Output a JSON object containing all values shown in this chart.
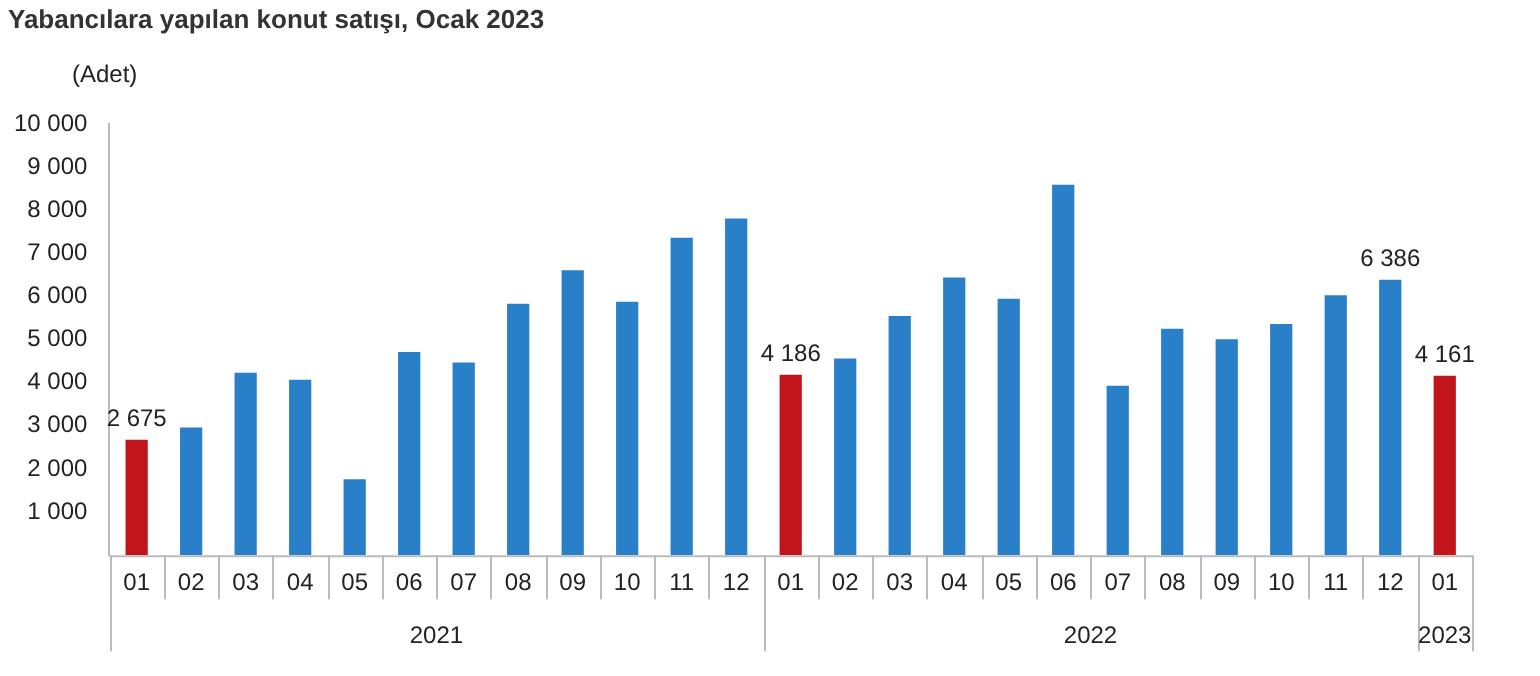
{
  "chart_data": {
    "type": "bar",
    "title": "Yabancılara yapılan konut satışı, Ocak 2023",
    "ylabel": "(Adet)",
    "categories": [
      "01",
      "02",
      "03",
      "04",
      "05",
      "06",
      "07",
      "08",
      "09",
      "10",
      "11",
      "12",
      "01",
      "02",
      "03",
      "04",
      "05",
      "06",
      "07",
      "08",
      "09",
      "10",
      "11",
      "12",
      "01"
    ],
    "values": [
      2675,
      2960,
      4230,
      4070,
      1760,
      4710,
      4470,
      5830,
      6610,
      5880,
      7360,
      7810,
      4186,
      4560,
      5550,
      6440,
      5950,
      8590,
      3930,
      5250,
      5010,
      5360,
      6030,
      6386,
      4161
    ],
    "colors": [
      "#c0161b",
      "#2a7fc9",
      "#2a7fc9",
      "#2a7fc9",
      "#2a7fc9",
      "#2a7fc9",
      "#2a7fc9",
      "#2a7fc9",
      "#2a7fc9",
      "#2a7fc9",
      "#2a7fc9",
      "#2a7fc9",
      "#c0161b",
      "#2a7fc9",
      "#2a7fc9",
      "#2a7fc9",
      "#2a7fc9",
      "#2a7fc9",
      "#2a7fc9",
      "#2a7fc9",
      "#2a7fc9",
      "#2a7fc9",
      "#2a7fc9",
      "#2a7fc9",
      "#c0161b"
    ],
    "value_labels": [
      "2 675",
      null,
      null,
      null,
      null,
      null,
      null,
      null,
      null,
      null,
      null,
      null,
      "4 186",
      null,
      null,
      null,
      null,
      null,
      null,
      null,
      null,
      null,
      null,
      "6 386",
      "4 161"
    ],
    "ylim": [
      0,
      10000
    ],
    "yticks": [
      {
        "value": 0,
        "label": null
      },
      {
        "value": 1000,
        "label": "1 000"
      },
      {
        "value": 2000,
        "label": "2 000"
      },
      {
        "value": 3000,
        "label": "3 000"
      },
      {
        "value": 4000,
        "label": "4 000"
      },
      {
        "value": 5000,
        "label": "5 000"
      },
      {
        "value": 6000,
        "label": "6 000"
      },
      {
        "value": 7000,
        "label": "7 000"
      },
      {
        "value": 8000,
        "label": "8 000"
      },
      {
        "value": 9000,
        "label": "9 000"
      },
      {
        "value": 10000,
        "label": "10 000"
      }
    ],
    "annotations": [
      "2021",
      "2022",
      "2023"
    ],
    "grid": false,
    "legend": false
  }
}
